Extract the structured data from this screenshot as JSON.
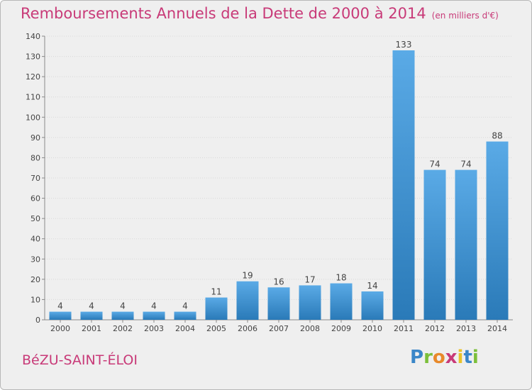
{
  "header": {
    "title": "Remboursements Annuels de la Dette de 2000 à 2014",
    "unit": "(en milliers d'€)"
  },
  "footer": {
    "commune": "BéZU-SAINT-ÉLOI",
    "logo": "Proxiti"
  },
  "colors": {
    "title": "#c83a78",
    "bar_light": "#5aaae6",
    "bar_dark": "#2a7ab8",
    "background": "#efefef"
  },
  "chart_data": {
    "type": "bar",
    "title": "Remboursements Annuels de la Dette de 2000 à 2014",
    "subtitle": "(en milliers d'€)",
    "xlabel": "",
    "ylabel": "",
    "categories": [
      "2000",
      "2001",
      "2002",
      "2003",
      "2004",
      "2005",
      "2006",
      "2007",
      "2008",
      "2009",
      "2010",
      "2011",
      "2012",
      "2013",
      "2014"
    ],
    "values": [
      4,
      4,
      4,
      4,
      4,
      11,
      19,
      16,
      17,
      18,
      14,
      133,
      74,
      74,
      88
    ],
    "data_labels": [
      "4",
      "4",
      "4",
      "4",
      "4",
      "11",
      "19",
      "16",
      "17",
      "18",
      "14",
      "133",
      "74",
      "74",
      "88"
    ],
    "ylim": [
      0,
      140
    ],
    "yticks": [
      0,
      10,
      20,
      30,
      40,
      50,
      60,
      70,
      80,
      90,
      100,
      110,
      120,
      130,
      140
    ],
    "grid": true,
    "legend": "none"
  }
}
